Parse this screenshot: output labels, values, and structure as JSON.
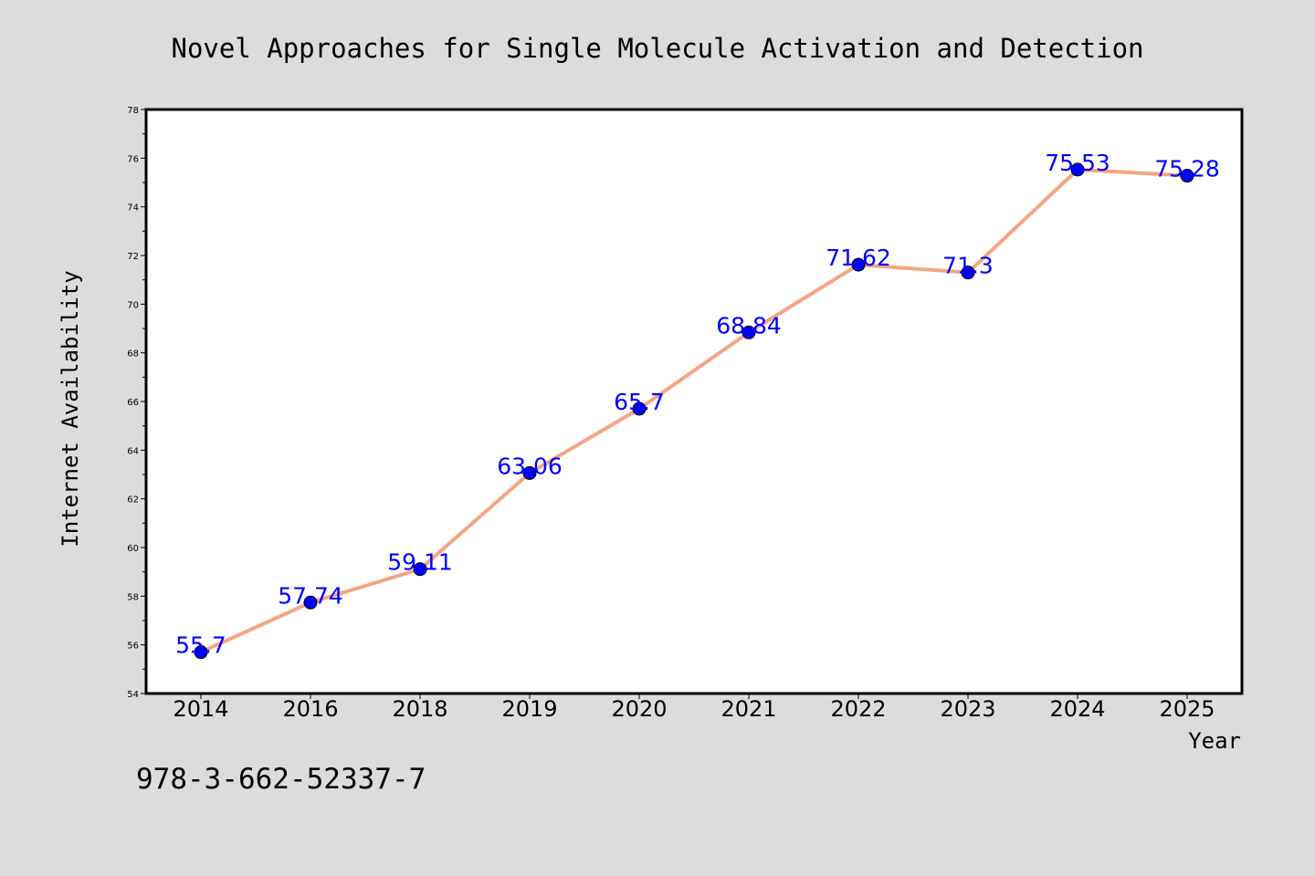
{
  "chart_data": {
    "type": "line",
    "title": "Novel Approaches for Single Molecule Activation and Detection",
    "xlabel": "Year",
    "ylabel": "Internet Availability",
    "categories": [
      "2014",
      "2016",
      "2018",
      "2019",
      "2020",
      "2021",
      "2022",
      "2023",
      "2024",
      "2025"
    ],
    "series": [
      {
        "values": [
          55.7,
          57.74,
          59.11,
          63.06,
          65.7,
          68.84,
          71.62,
          71.3,
          75.53,
          75.28
        ],
        "labels": [
          "55.7",
          "57.74",
          "59.11",
          "63.06",
          "65.7",
          "68.84",
          "71.62",
          "71.3",
          "75.53",
          "75.28"
        ],
        "line_color": "#f4a582",
        "marker_color": "#0000ff",
        "label_color": "#0000ff"
      }
    ],
    "ylim": [
      54,
      78
    ],
    "yticks": [
      "54",
      "56",
      "58",
      "60",
      "62",
      "64",
      "66",
      "68",
      "70",
      "72",
      "74",
      "76",
      "78"
    ],
    "grid": false,
    "annotation": "978-3-662-52337-7"
  },
  "colors": {
    "background": "#dcdcdc",
    "plot_background": "#ffffff",
    "axis": "#000000"
  }
}
